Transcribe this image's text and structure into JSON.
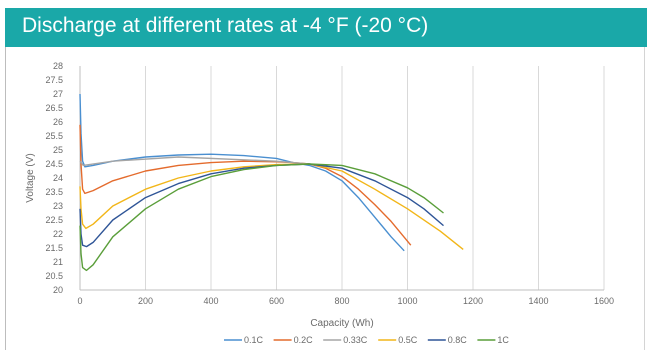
{
  "header": {
    "title": "Discharge at different rates at -4 °F (-20 °C)",
    "color": "#1aa8a8"
  },
  "chart_data": {
    "type": "line",
    "title": "Discharge at different rates at -4 °F (-20 °C)",
    "xlabel": "Capacity (Wh)",
    "ylabel": "Voltage (V)",
    "xlim": [
      0,
      1600
    ],
    "ylim": [
      20,
      28
    ],
    "x_ticks": [
      "0",
      "200",
      "400",
      "600",
      "800",
      "1000",
      "1200",
      "1400",
      "1600"
    ],
    "y_ticks": [
      "20",
      "20.5",
      "21",
      "21.5",
      "22",
      "22.5",
      "23",
      "23.5",
      "24",
      "24.5",
      "25",
      "25.5",
      "26",
      "26.5",
      "27",
      "27.5",
      "28"
    ],
    "grid": "vertical",
    "legend_position": "bottom",
    "series": [
      {
        "name": "0.1C",
        "color": "#4a8fd0",
        "x": [
          0,
          3,
          8,
          15,
          40,
          100,
          200,
          300,
          400,
          500,
          600,
          650,
          700,
          750,
          800,
          850,
          900,
          950,
          990
        ],
        "y": [
          27.0,
          25.6,
          24.6,
          24.4,
          24.45,
          24.6,
          24.75,
          24.82,
          24.85,
          24.8,
          24.7,
          24.55,
          24.45,
          24.25,
          23.9,
          23.3,
          22.6,
          21.9,
          21.4
        ]
      },
      {
        "name": "0.2C",
        "color": "#e46b2d",
        "x": [
          0,
          3,
          8,
          15,
          40,
          100,
          200,
          300,
          400,
          500,
          600,
          650,
          700,
          750,
          800,
          850,
          900,
          950,
          1010
        ],
        "y": [
          25.9,
          24.5,
          23.6,
          23.45,
          23.55,
          23.9,
          24.25,
          24.45,
          24.55,
          24.6,
          24.58,
          24.55,
          24.5,
          24.35,
          24.05,
          23.6,
          23.05,
          22.45,
          21.6
        ]
      },
      {
        "name": "0.33C",
        "color": "#a5a5a5",
        "x": [
          0,
          10,
          100,
          300,
          600,
          700
        ],
        "y": [
          24.6,
          24.45,
          24.6,
          24.75,
          24.6,
          24.5
        ]
      },
      {
        "name": "0.5C",
        "color": "#f2b619",
        "x": [
          0,
          3,
          8,
          18,
          40,
          100,
          200,
          300,
          400,
          500,
          600,
          700,
          800,
          900,
          1000,
          1100,
          1170
        ],
        "y": [
          23.7,
          22.9,
          22.35,
          22.2,
          22.35,
          23.0,
          23.6,
          24.0,
          24.25,
          24.4,
          24.48,
          24.5,
          24.25,
          23.6,
          22.9,
          22.1,
          21.45
        ]
      },
      {
        "name": "0.8C",
        "color": "#2f5597",
        "x": [
          0,
          3,
          8,
          20,
          40,
          100,
          200,
          300,
          400,
          500,
          600,
          700,
          800,
          900,
          1000,
          1050,
          1110
        ],
        "y": [
          22.9,
          22.0,
          21.6,
          21.55,
          21.7,
          22.5,
          23.3,
          23.8,
          24.15,
          24.35,
          24.45,
          24.5,
          24.35,
          23.9,
          23.3,
          22.9,
          22.3
        ]
      },
      {
        "name": "1C",
        "color": "#5a9e3a",
        "x": [
          0,
          3,
          8,
          20,
          40,
          100,
          200,
          300,
          400,
          500,
          600,
          700,
          800,
          900,
          1000,
          1050,
          1110
        ],
        "y": [
          22.3,
          21.3,
          20.8,
          20.7,
          20.9,
          21.9,
          22.9,
          23.6,
          24.05,
          24.3,
          24.45,
          24.5,
          24.45,
          24.15,
          23.65,
          23.3,
          22.75
        ]
      }
    ]
  }
}
